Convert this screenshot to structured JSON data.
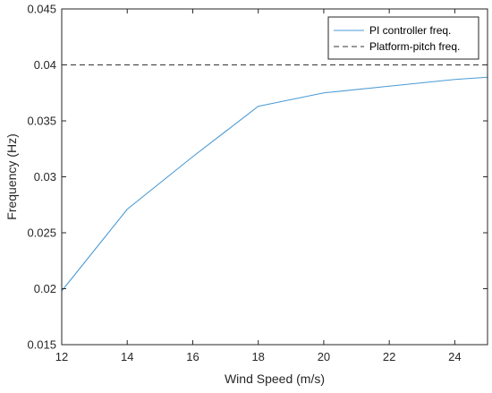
{
  "chart_data": {
    "type": "line",
    "title": "",
    "xlabel": "Wind Speed (m/s)",
    "ylabel": "Frequency (Hz)",
    "xlim": [
      12,
      25
    ],
    "ylim": [
      0.015,
      0.045
    ],
    "xticks": [
      12,
      14,
      16,
      18,
      20,
      22,
      24
    ],
    "xtick_labels": [
      "12",
      "14",
      "16",
      "18",
      "20",
      "22",
      "24"
    ],
    "yticks": [
      0.015,
      0.02,
      0.025,
      0.03,
      0.035,
      0.04,
      0.045
    ],
    "ytick_labels": [
      "0.015",
      "0.02",
      "0.025",
      "0.03",
      "0.035",
      "0.04",
      "0.045"
    ],
    "grid": false,
    "legend": {
      "placement": "top-right"
    },
    "series": [
      {
        "name": "PI controller freq.",
        "style": "solid",
        "color": "#4a9bd4",
        "x": [
          12,
          14,
          16,
          18,
          20,
          22,
          24,
          25
        ],
        "y": [
          0.0198,
          0.0271,
          0.0318,
          0.0363,
          0.0375,
          0.0381,
          0.0387,
          0.0389
        ]
      },
      {
        "name": "Platform-pitch freq.",
        "style": "dashed",
        "color": "#333333",
        "x": [
          12,
          25
        ],
        "y": [
          0.04,
          0.04
        ]
      }
    ]
  }
}
